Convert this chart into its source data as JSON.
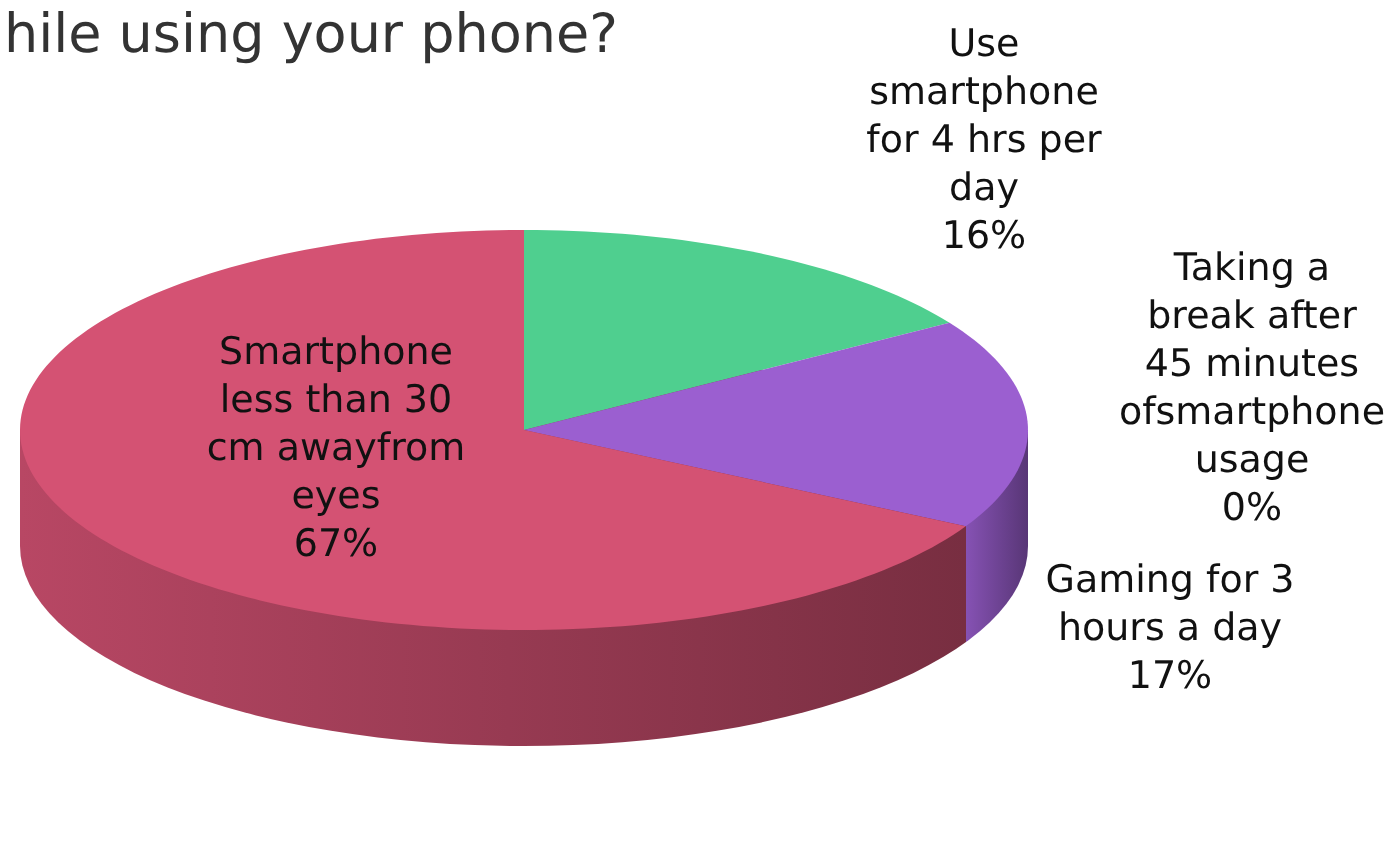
{
  "chart_data": {
    "type": "pie",
    "title": "hile using your phone?",
    "categories": [
      "Use smartphone for 4 hrs per day",
      "Taking a break after 45 minutes ofsmartphone usage",
      "Gaming for 3 hours a day",
      "Smartphone less than 30 cm awayfrom eyes"
    ],
    "values": [
      16,
      0,
      17,
      67
    ],
    "colors": [
      "#4fcf8f",
      "#4f81bd",
      "#9b5fd0",
      "#d45273"
    ],
    "value_labels": [
      "16%",
      "0%",
      "17%",
      "67%"
    ]
  }
}
